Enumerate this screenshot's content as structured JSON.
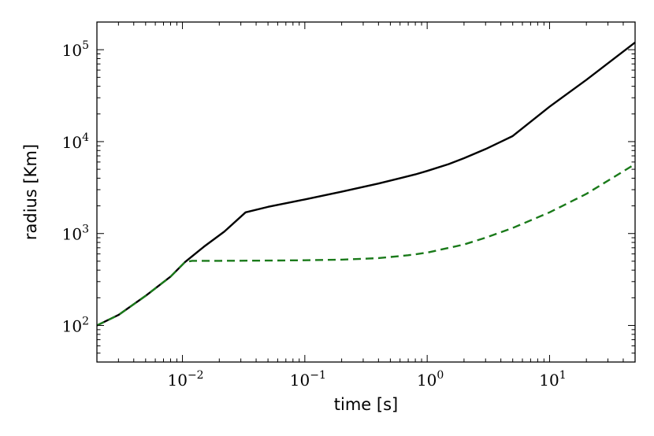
{
  "chart_data": {
    "type": "line",
    "title": "",
    "xlabel": "time [s]",
    "ylabel": "radius [Km]",
    "xscale": "log",
    "yscale": "log",
    "xlim": [
      0.002,
      50
    ],
    "ylim": [
      40,
      200000
    ],
    "grid": false,
    "legend": "none",
    "x_ticks": [
      {
        "value": 0.01,
        "base": "10",
        "exp": "−2"
      },
      {
        "value": 0.1,
        "base": "10",
        "exp": "−1"
      },
      {
        "value": 1,
        "base": "10",
        "exp": "0"
      },
      {
        "value": 10,
        "base": "10",
        "exp": "1"
      }
    ],
    "y_ticks": [
      {
        "value": 100,
        "base": "10",
        "exp": "2"
      },
      {
        "value": 1000,
        "base": "10",
        "exp": "3"
      },
      {
        "value": 10000,
        "base": "10",
        "exp": "4"
      },
      {
        "value": 100000,
        "base": "10",
        "exp": "5"
      }
    ],
    "series": [
      {
        "color": "#000000",
        "style": "solid",
        "points": [
          [
            0.002,
            100
          ],
          [
            0.003,
            130
          ],
          [
            0.005,
            210
          ],
          [
            0.008,
            340
          ],
          [
            0.0105,
            490
          ],
          [
            0.015,
            720
          ],
          [
            0.022,
            1050
          ],
          [
            0.0328,
            1700
          ],
          [
            0.05,
            1950
          ],
          [
            0.1,
            2350
          ],
          [
            0.2,
            2850
          ],
          [
            0.4,
            3500
          ],
          [
            0.8,
            4400
          ],
          [
            1.0,
            4800
          ],
          [
            1.5,
            5700
          ],
          [
            2.0,
            6600
          ],
          [
            3.0,
            8300
          ],
          [
            5.0,
            11500
          ],
          [
            10.0,
            24000
          ],
          [
            20.0,
            47000
          ],
          [
            50.0,
            120000
          ]
        ]
      },
      {
        "color": "#1a7a1a",
        "style": "dashed",
        "points": [
          [
            0.002,
            100
          ],
          [
            0.003,
            130
          ],
          [
            0.005,
            210
          ],
          [
            0.008,
            340
          ],
          [
            0.0105,
            490
          ],
          [
            0.012,
            505
          ],
          [
            0.02,
            505
          ],
          [
            0.05,
            508
          ],
          [
            0.1,
            512
          ],
          [
            0.2,
            520
          ],
          [
            0.4,
            540
          ],
          [
            0.7,
            580
          ],
          [
            1.0,
            620
          ],
          [
            2.0,
            760
          ],
          [
            3.0,
            900
          ],
          [
            5.0,
            1150
          ],
          [
            10.0,
            1700
          ],
          [
            20.0,
            2700
          ],
          [
            50.0,
            5700
          ]
        ]
      }
    ]
  }
}
